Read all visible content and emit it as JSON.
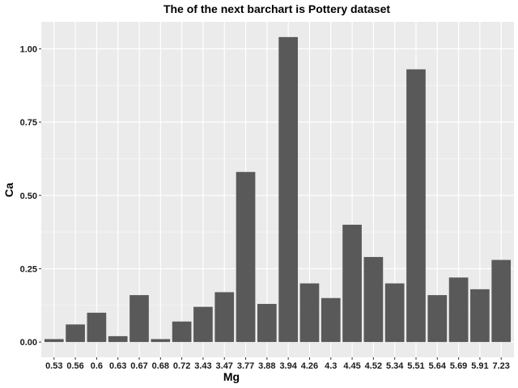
{
  "colors": {
    "panel": "#ebebeb",
    "grid_major": "#ffffff",
    "bar": "#595959",
    "tick": "#333333"
  },
  "chart_data": {
    "type": "bar",
    "title": "The of the next barchart is Pottery dataset",
    "xlabel": "Mg",
    "ylabel": "Ca",
    "categories": [
      "0.53",
      "0.56",
      "0.6",
      "0.63",
      "0.67",
      "0.68",
      "0.72",
      "3.43",
      "3.47",
      "3.77",
      "3.88",
      "3.94",
      "4.26",
      "4.3",
      "4.45",
      "4.52",
      "5.34",
      "5.51",
      "5.64",
      "5.69",
      "5.91",
      "7.23"
    ],
    "values": [
      0.01,
      0.06,
      0.1,
      0.02,
      0.16,
      0.01,
      0.07,
      0.12,
      0.17,
      0.58,
      0.13,
      1.04,
      0.2,
      0.15,
      0.4,
      0.29,
      0.2,
      0.93,
      0.16,
      0.22,
      0.18,
      0.28
    ],
    "ylim": [
      -0.052,
      1.092
    ],
    "yticks": [
      0.0,
      0.25,
      0.5,
      0.75,
      1.0
    ],
    "ytick_labels": [
      "0.00",
      "0.25",
      "0.50",
      "0.75",
      "1.00"
    ],
    "grid": true,
    "legend": "none"
  }
}
